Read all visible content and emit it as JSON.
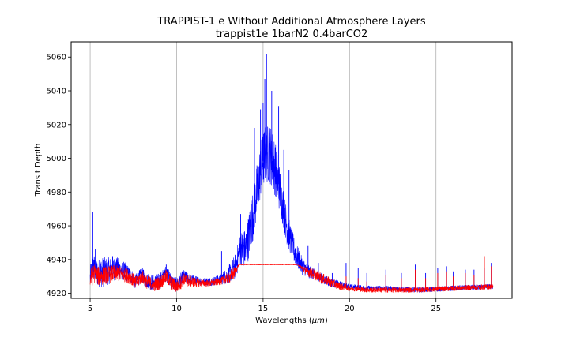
{
  "chart_data": {
    "type": "line",
    "title": "TRAPPIST-1 e Without Additional Atmosphere Layers",
    "subtitle": "trappist1e 1barN2 0.4barCO2",
    "xlabel": "Wavelengths (",
    "xlabel_unit": "μm",
    "xlabel_close": ")",
    "ylabel": "Transit Depth",
    "xlim": [
      3.9,
      29.4
    ],
    "ylim": [
      4917,
      5069
    ],
    "x_ticks": [
      5,
      10,
      15,
      20,
      25
    ],
    "y_ticks": [
      4920,
      4940,
      4960,
      4980,
      5000,
      5020,
      5040,
      5060
    ],
    "x_tick_labels": [
      "5",
      "10",
      "15",
      "20",
      "25"
    ],
    "y_tick_labels": [
      "4920",
      "4940",
      "4960",
      "4980",
      "5000",
      "5020",
      "5040",
      "5060"
    ],
    "grid": "vertical-x-only",
    "series": [
      {
        "color": "#0000ff",
        "noise": [
          [
            5.0,
            7
          ],
          [
            5.7,
            9
          ],
          [
            7.5,
            4
          ],
          [
            9.0,
            5
          ],
          [
            10.4,
            4
          ],
          [
            11.5,
            2
          ],
          [
            12.5,
            3
          ],
          [
            13.2,
            6
          ],
          [
            13.7,
            10
          ],
          [
            14.5,
            16
          ],
          [
            15.5,
            18
          ],
          [
            16.4,
            10
          ],
          [
            17.5,
            4
          ],
          [
            18.5,
            3
          ],
          [
            20.0,
            1.5
          ],
          [
            28.3,
            1.5
          ]
        ],
        "points": [
          [
            5.0,
            4929
          ],
          [
            5.1,
            4933
          ],
          [
            5.2,
            4936
          ],
          [
            5.4,
            4932
          ],
          [
            6.0,
            4933
          ],
          [
            6.5,
            4935
          ],
          [
            7.0,
            4933
          ],
          [
            7.4,
            4930
          ],
          [
            7.6,
            4927
          ],
          [
            8.0,
            4931
          ],
          [
            8.2,
            4928
          ],
          [
            8.7,
            4926
          ],
          [
            9.0,
            4927
          ],
          [
            9.4,
            4932
          ],
          [
            9.7,
            4927
          ],
          [
            10.0,
            4925
          ],
          [
            10.4,
            4930
          ],
          [
            10.8,
            4928
          ],
          [
            11.5,
            4927
          ],
          [
            12.0,
            4927
          ],
          [
            12.5,
            4928
          ],
          [
            13.0,
            4931
          ],
          [
            13.4,
            4936
          ],
          [
            13.7,
            4947
          ],
          [
            14.0,
            4946
          ],
          [
            14.3,
            4960
          ],
          [
            14.6,
            4978
          ],
          [
            14.9,
            4995
          ],
          [
            15.1,
            5002
          ],
          [
            15.4,
            5003
          ],
          [
            15.7,
            4994
          ],
          [
            16.0,
            4980
          ],
          [
            16.4,
            4958
          ],
          [
            16.8,
            4945
          ],
          [
            17.2,
            4937
          ],
          [
            17.6,
            4933
          ],
          [
            18.0,
            4931
          ],
          [
            18.5,
            4928
          ],
          [
            19.0,
            4926
          ],
          [
            19.5,
            4925
          ],
          [
            20.0,
            4924
          ],
          [
            21.0,
            4923
          ],
          [
            22.0,
            4923
          ],
          [
            24.0,
            4922
          ],
          [
            26.0,
            4923
          ],
          [
            28.3,
            4924
          ]
        ],
        "spikes": [
          [
            5.15,
            4968
          ],
          [
            5.3,
            4946
          ],
          [
            6.3,
            4942
          ],
          [
            9.4,
            4937
          ],
          [
            12.6,
            4945
          ],
          [
            13.7,
            4967
          ],
          [
            14.5,
            5018
          ],
          [
            14.85,
            5029
          ],
          [
            15.0,
            5033
          ],
          [
            15.1,
            5047
          ],
          [
            15.2,
            5062
          ],
          [
            15.5,
            5040
          ],
          [
            15.9,
            5031
          ],
          [
            16.2,
            5005
          ],
          [
            16.5,
            4993
          ],
          [
            16.9,
            4974
          ],
          [
            17.6,
            4948
          ],
          [
            18.2,
            4938
          ],
          [
            19.0,
            4932
          ],
          [
            19.8,
            4938
          ],
          [
            20.5,
            4935
          ],
          [
            21.0,
            4932
          ],
          [
            22.1,
            4934
          ],
          [
            23.0,
            4932
          ],
          [
            23.8,
            4937
          ],
          [
            24.4,
            4932
          ],
          [
            25.1,
            4935
          ],
          [
            25.6,
            4936
          ],
          [
            26.0,
            4933
          ],
          [
            26.7,
            4934
          ],
          [
            27.2,
            4934
          ],
          [
            27.8,
            4935
          ],
          [
            28.2,
            4938
          ]
        ]
      },
      {
        "color": "#ff0000",
        "noise": [
          [
            5.0,
            6
          ],
          [
            7.5,
            4
          ],
          [
            9.0,
            4
          ],
          [
            10.4,
            4
          ],
          [
            11.5,
            2
          ],
          [
            12.5,
            2
          ],
          [
            13.3,
            4
          ],
          [
            13.6,
            0.2
          ],
          [
            17.0,
            0.2
          ],
          [
            17.6,
            3
          ],
          [
            18.5,
            3
          ],
          [
            20.0,
            1.5
          ],
          [
            28.3,
            1.5
          ]
        ],
        "points": [
          [
            5.0,
            4928
          ],
          [
            5.2,
            4932
          ],
          [
            5.5,
            4930
          ],
          [
            6.0,
            4931
          ],
          [
            6.5,
            4932
          ],
          [
            7.0,
            4931
          ],
          [
            7.4,
            4929
          ],
          [
            7.6,
            4926
          ],
          [
            8.0,
            4930
          ],
          [
            8.2,
            4927
          ],
          [
            8.7,
            4925
          ],
          [
            9.0,
            4926
          ],
          [
            9.4,
            4930
          ],
          [
            9.7,
            4926
          ],
          [
            10.0,
            4924
          ],
          [
            10.4,
            4928
          ],
          [
            10.8,
            4927
          ],
          [
            11.5,
            4926
          ],
          [
            12.0,
            4926
          ],
          [
            12.5,
            4927
          ],
          [
            13.0,
            4929
          ],
          [
            13.4,
            4933
          ],
          [
            13.6,
            4937
          ],
          [
            17.0,
            4937
          ],
          [
            17.4,
            4934
          ],
          [
            17.8,
            4932
          ],
          [
            18.2,
            4930
          ],
          [
            19.0,
            4926
          ],
          [
            19.5,
            4924
          ],
          [
            20.0,
            4923
          ],
          [
            21.0,
            4922
          ],
          [
            22.0,
            4922
          ],
          [
            24.0,
            4922
          ],
          [
            26.0,
            4923
          ],
          [
            28.3,
            4924
          ]
        ],
        "spikes": [
          [
            19.8,
            4930
          ],
          [
            20.5,
            4929
          ],
          [
            21.0,
            4927
          ],
          [
            22.1,
            4931
          ],
          [
            23.0,
            4929
          ],
          [
            23.8,
            4934
          ],
          [
            24.4,
            4929
          ],
          [
            25.1,
            4932
          ],
          [
            25.6,
            4933
          ],
          [
            26.0,
            4930
          ],
          [
            26.7,
            4932
          ],
          [
            27.2,
            4931
          ],
          [
            27.8,
            4942
          ],
          [
            28.2,
            4936
          ]
        ]
      }
    ]
  }
}
